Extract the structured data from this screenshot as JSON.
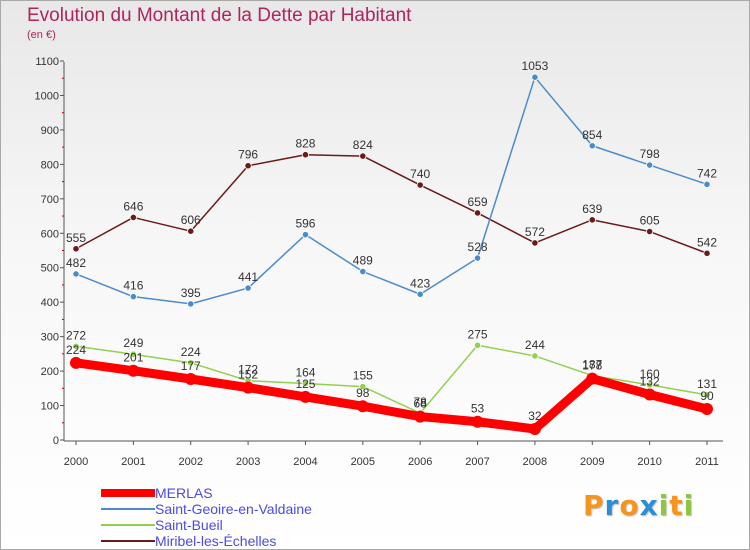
{
  "chart_data": {
    "type": "line",
    "title": "Evolution du Montant de la Dette par Habitant",
    "unit_label": "(en €)",
    "x": [
      "2000",
      "2001",
      "2002",
      "2003",
      "2004",
      "2005",
      "2006",
      "2007",
      "2008",
      "2009",
      "2010",
      "2011"
    ],
    "ylim": [
      0,
      1100
    ],
    "yticks": [
      0,
      100,
      200,
      300,
      400,
      500,
      600,
      700,
      800,
      900,
      1000,
      1100
    ],
    "grid": false,
    "legend_position": "bottom-left",
    "series": [
      {
        "name": "MERLAS",
        "color": "#ff0000",
        "values": [
          224,
          201,
          177,
          152,
          125,
          98,
          68,
          53,
          32,
          178,
          132,
          90
        ]
      },
      {
        "name": "Saint-Geoire-en-Valdaine",
        "color": "#4b8cc8",
        "values": [
          482,
          416,
          395,
          441,
          596,
          489,
          423,
          528,
          1053,
          854,
          798,
          742
        ]
      },
      {
        "name": "Saint-Bueil",
        "color": "#92d050",
        "values": [
          272,
          249,
          224,
          172,
          164,
          155,
          78,
          275,
          244,
          187,
          160,
          131
        ]
      },
      {
        "name": "Miribel-les-Échelles",
        "color": "#6b1a1a",
        "values": [
          555,
          646,
          606,
          796,
          828,
          824,
          740,
          659,
          572,
          639,
          605,
          542
        ]
      }
    ]
  },
  "logo": {
    "text": "Proxiti",
    "letter_colors": [
      "#f7941d",
      "#2a8fd6",
      "#f7941d",
      "#2a8fd6",
      "#8dc63f",
      "#f7941d",
      "#8dc63f"
    ]
  }
}
